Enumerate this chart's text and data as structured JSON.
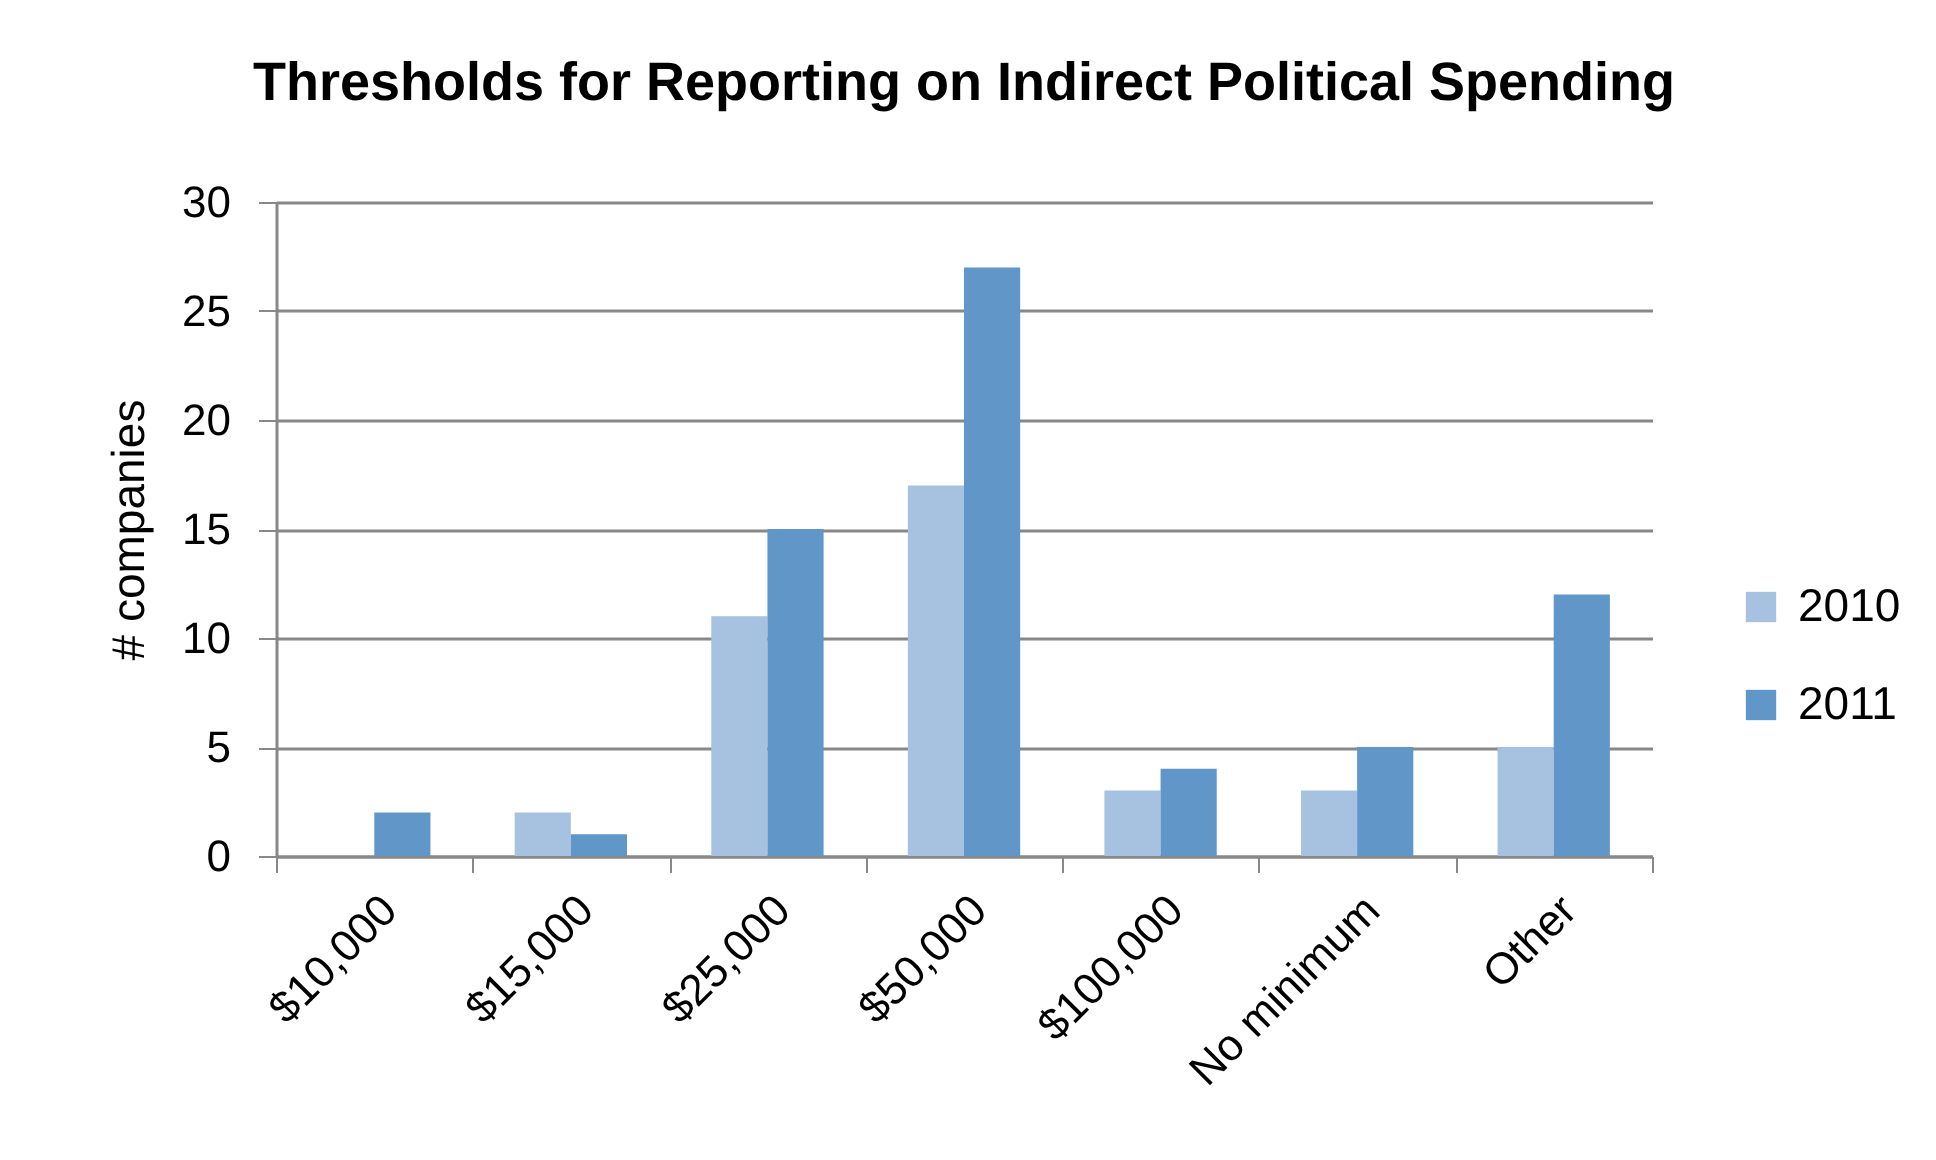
{
  "chart_data": {
    "type": "bar",
    "title": "Thresholds for Reporting on Indirect Political Spending",
    "ylabel": "# companies",
    "categories": [
      "$10,000",
      "$15,000",
      "$25,000",
      "$50,000",
      "$100,000",
      "No minimum",
      "Other"
    ],
    "series": [
      {
        "name": "2010",
        "color": "#a6c2e0",
        "values": [
          null,
          2,
          11,
          17,
          3,
          3,
          5
        ]
      },
      {
        "name": "2011",
        "color": "#6196c8",
        "values": [
          2,
          1,
          15,
          27,
          4,
          5,
          12
        ]
      }
    ],
    "ylim": [
      0,
      30
    ],
    "yticks": [
      0,
      5,
      10,
      15,
      20,
      25,
      30
    ],
    "grid": "y",
    "legend": "right"
  }
}
